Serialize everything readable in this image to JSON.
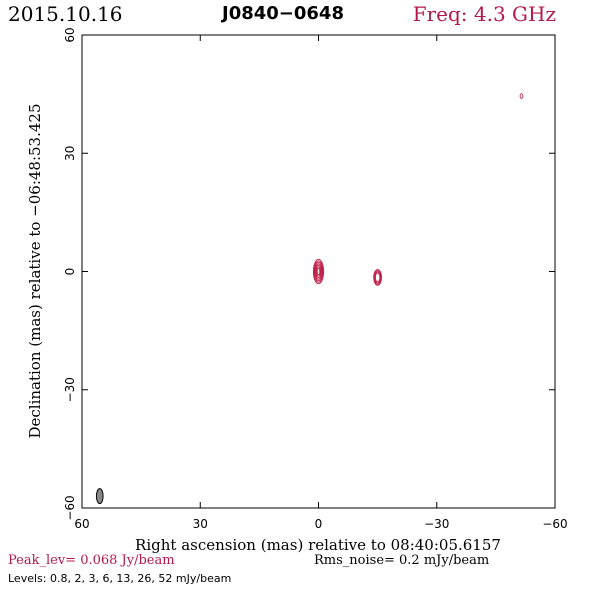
{
  "header": {
    "date": "2015.10.16",
    "source": "J0840−0648",
    "frequency": "Freq: 4.3 GHz"
  },
  "footer": {
    "peak_level": "Peak_lev=  0.068 Jy/beam",
    "rms_noise": "Rms_noise=  0.2 mJy/beam",
    "levels": "Levels: 0.8,   2,   3,   6,  13,  26,  52 mJy/beam"
  },
  "colors": {
    "contour": "#c0204a",
    "accent": "#b5184a",
    "beam": "#888888"
  },
  "chart_data": {
    "type": "contour",
    "title": "",
    "xlabel": "Right ascension (mas) relative to 08:40:05.6157",
    "ylabel": "Declination (mas) relative to −06:48:53.425",
    "xlim": [
      60,
      -60
    ],
    "ylim": [
      -60,
      60
    ],
    "xticks": [
      60,
      30,
      0,
      -30,
      -60
    ],
    "yticks": [
      -60,
      -30,
      0,
      30,
      60
    ],
    "xtick_labels": [
      "60",
      "30",
      "0",
      "−30",
      "−60"
    ],
    "ytick_labels": [
      "−60",
      "−30",
      "0",
      "30",
      "60"
    ],
    "grid": false,
    "contour_levels_mJy": [
      0.8,
      2,
      3,
      6,
      13,
      26,
      52
    ],
    "components": [
      {
        "x": 0,
        "y": 0,
        "sx": 1.3,
        "sy": 3.1,
        "levels": 7
      },
      {
        "x": -15,
        "y": -1.5,
        "sx": 1.0,
        "sy": 2.0,
        "levels": 4
      },
      {
        "x": -51.5,
        "y": 44.5,
        "sx": 0.35,
        "sy": 0.6,
        "levels": 1
      }
    ],
    "beam": {
      "x": 55.5,
      "y": -57,
      "major": 3.8,
      "minor": 1.7,
      "pa": 0
    }
  }
}
